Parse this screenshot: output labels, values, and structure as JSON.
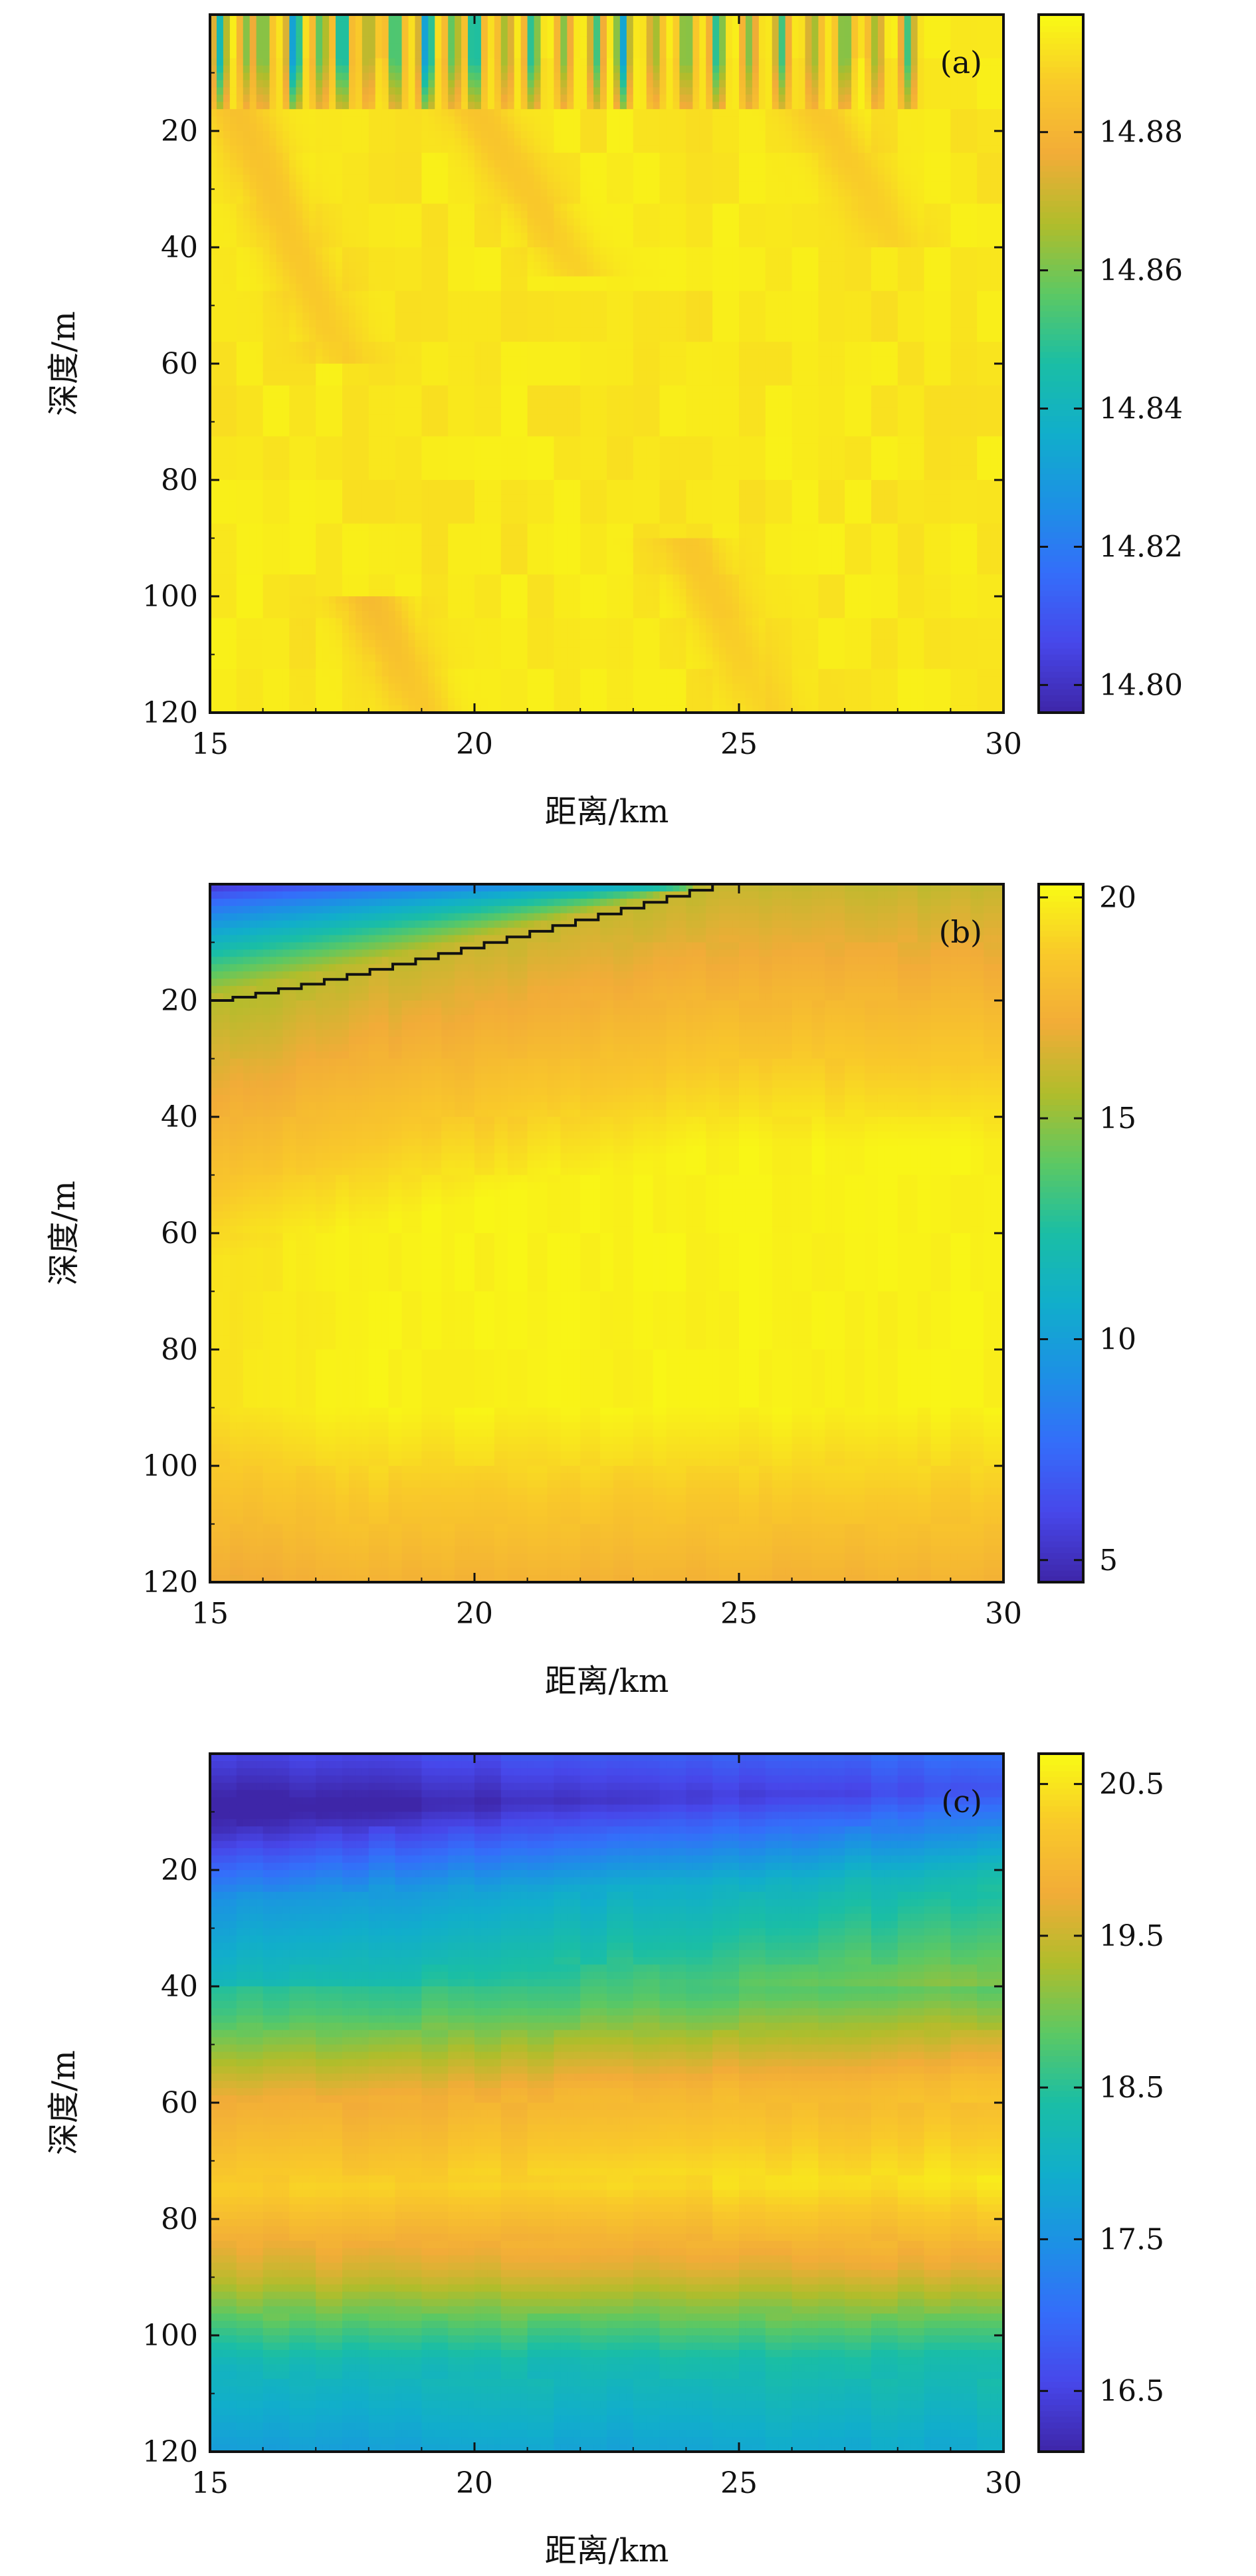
{
  "chart_data": [
    {
      "type": "heatmap",
      "panel_label": "(a)",
      "xlabel": "距离/km",
      "ylabel": "深度/m",
      "xlim": [
        15,
        30
      ],
      "ylim": [
        0,
        120
      ],
      "xticks": [
        15,
        20,
        25,
        30
      ],
      "yticks": [
        20,
        40,
        60,
        80,
        100,
        120
      ],
      "colorbar": {
        "range": [
          14.796,
          14.897
        ],
        "ticks": [
          14.8,
          14.82,
          14.84,
          14.86,
          14.88
        ],
        "tick_labels": [
          "14.80",
          "14.82",
          "14.84",
          "14.86",
          "14.88"
        ]
      },
      "field": {
        "description_values": "Mostly uniform ~14.89-14.895 with strong streaky variations (down to ~14.80) in the top ~16 m",
        "background": 14.893,
        "surface_layer_depth": 16,
        "surface_streaks": [
          {
            "x": 15.2,
            "v": 14.84
          },
          {
            "x": 15.7,
            "v": 14.86
          },
          {
            "x": 16.0,
            "v": 14.85
          },
          {
            "x": 16.6,
            "v": 14.82
          },
          {
            "x": 17.1,
            "v": 14.85
          },
          {
            "x": 17.5,
            "v": 14.83
          },
          {
            "x": 18.0,
            "v": 14.86
          },
          {
            "x": 18.5,
            "v": 14.84
          },
          {
            "x": 19.1,
            "v": 14.82
          },
          {
            "x": 19.6,
            "v": 14.85
          },
          {
            "x": 20.0,
            "v": 14.83
          },
          {
            "x": 20.6,
            "v": 14.86
          },
          {
            "x": 21.1,
            "v": 14.84
          },
          {
            "x": 21.7,
            "v": 14.86
          },
          {
            "x": 22.3,
            "v": 14.85
          },
          {
            "x": 22.8,
            "v": 14.83
          },
          {
            "x": 23.4,
            "v": 14.86
          },
          {
            "x": 24.0,
            "v": 14.85
          },
          {
            "x": 24.6,
            "v": 14.84
          },
          {
            "x": 25.2,
            "v": 14.86
          },
          {
            "x": 25.8,
            "v": 14.85
          },
          {
            "x": 26.4,
            "v": 14.86
          },
          {
            "x": 27.0,
            "v": 14.85
          },
          {
            "x": 27.6,
            "v": 14.86
          },
          {
            "x": 28.2,
            "v": 14.85
          }
        ],
        "subsurface_warm_streaks": [
          {
            "x0": 15.5,
            "x1": 17.5,
            "d0": 16,
            "d1": 60,
            "v": 14.884
          },
          {
            "x0": 20.0,
            "x1": 22.0,
            "d0": 16,
            "d1": 45,
            "v": 14.885
          },
          {
            "x0": 26.5,
            "x1": 28.0,
            "d0": 16,
            "d1": 40,
            "v": 14.886
          },
          {
            "x0": 18.0,
            "x1": 19.0,
            "d0": 100,
            "d1": 120,
            "v": 14.882
          },
          {
            "x0": 24.0,
            "x1": 25.5,
            "d0": 90,
            "d1": 120,
            "v": 14.886
          }
        ]
      }
    },
    {
      "type": "heatmap",
      "panel_label": "(b)",
      "xlabel": "距离/km",
      "ylabel": "深度/m",
      "xlim": [
        15,
        30
      ],
      "ylim": [
        0,
        120
      ],
      "xticks": [
        15,
        20,
        25,
        30
      ],
      "yticks": [
        20,
        40,
        60,
        80,
        100,
        120
      ],
      "colorbar": {
        "range": [
          4.5,
          20.3
        ],
        "ticks": [
          5,
          10,
          15,
          20
        ],
        "tick_labels": [
          "5",
          "10",
          "15",
          "20"
        ]
      },
      "field": {
        "description_values": "Cold ~5-12 wedge in upper-left above a stepped front line, otherwise ~17-20",
        "front_line": {
          "x": [
            15.0,
            24.5
          ],
          "depth": [
            20,
            0
          ]
        },
        "cold_value_min": 5,
        "front_value": 16,
        "interior_max": 20,
        "bottom_value": 17.5
      }
    },
    {
      "type": "heatmap",
      "panel_label": "(c)",
      "xlabel": "距离/km",
      "ylabel": "深度/m",
      "xlim": [
        15,
        30
      ],
      "ylim": [
        0,
        120
      ],
      "xticks": [
        15,
        20,
        25,
        30
      ],
      "yticks": [
        20,
        40,
        60,
        80,
        100,
        120
      ],
      "colorbar": {
        "range": [
          16.1,
          20.7
        ],
        "ticks": [
          16.5,
          17.5,
          18.5,
          19.5,
          20.5
        ],
        "tick_labels": [
          "16.5",
          "17.5",
          "18.5",
          "19.5",
          "20.5"
        ]
      },
      "field": {
        "description_values": "Layered: cold ~16.3 near surface, ~18 at 25 m, ~19.5 at 55 m, ~20.4 at 75 m, ~18.5 at 110 m",
        "profile_depths": [
          0,
          10,
          25,
          45,
          60,
          75,
          90,
          105,
          120
        ],
        "profile_values": [
          16.9,
          16.3,
          17.9,
          18.8,
          19.9,
          20.4,
          19.6,
          18.3,
          17.8
        ],
        "x_trend": 0.4
      }
    }
  ]
}
